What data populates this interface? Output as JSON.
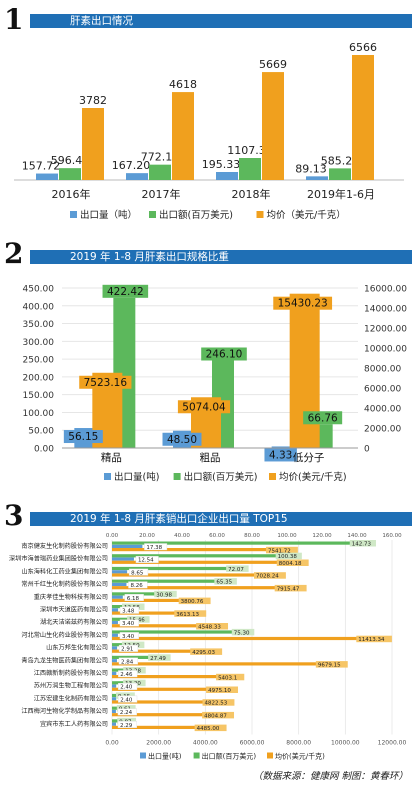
{
  "colors": {
    "blue": "#5b9bd5",
    "green": "#5cb85c",
    "orange": "#f0a01e",
    "header": "#1f6fb5"
  },
  "sections": [
    {
      "num": "1",
      "title": "肝素出口情况"
    },
    {
      "num": "2",
      "title": "2019 年 1-8 月肝素出口规格比重"
    },
    {
      "num": "3",
      "title": "2019 年 1-8 月肝素销出口企业出口量 TOP15"
    }
  ],
  "source": "（数据来源：健康网   制图：黄春环）",
  "chart_data": [
    {
      "type": "bar",
      "categories": [
        "2016年",
        "2017年",
        "2018年",
        "2019年1-6月"
      ],
      "series": [
        {
          "name": "出口量（吨）",
          "color": "blue",
          "values": [
            157.72,
            167.2,
            195.33,
            89.13
          ],
          "labels": [
            "157.72",
            "167.20",
            "195.33",
            "89.13"
          ]
        },
        {
          "name": "出口额(百万美元)",
          "color": "green",
          "values": [
            596.47,
            772.12,
            1107.39,
            585.22
          ],
          "labels": [
            "596.47",
            "772.12",
            "1107.39",
            "585.22"
          ]
        },
        {
          "name": "均价（美元/千克）",
          "color": "orange",
          "values": [
            3782,
            4618,
            5669,
            6566
          ],
          "labels": [
            "3782",
            "4618",
            "5669",
            "6566"
          ]
        }
      ]
    },
    {
      "type": "bar",
      "categories": [
        "精品",
        "粗品",
        "低分子"
      ],
      "yticks_left": [
        "0.00",
        "50.00",
        "100.00",
        "150.00",
        "200.00",
        "250.00",
        "300.00",
        "350.00",
        "400.00",
        "450.00"
      ],
      "yticks_right": [
        "0",
        "2000.00",
        "4000.00",
        "6000.00",
        "8000.00",
        "10000.00",
        "12000.00",
        "14000.00",
        "16000.00"
      ],
      "ylim_left": [
        0,
        450
      ],
      "ylim_right": [
        0,
        16000
      ],
      "series": [
        {
          "name": "出口量(吨)",
          "color": "blue",
          "axis": "left",
          "values": [
            56.15,
            48.5,
            4.33
          ],
          "labels": [
            "56.15",
            "48.50",
            "4.33"
          ]
        },
        {
          "name": "出口额(百万美元)",
          "color": "green",
          "axis": "left",
          "values": [
            422.42,
            246.1,
            66.76
          ],
          "labels": [
            "422.42",
            "246.10",
            "66.76"
          ]
        },
        {
          "name": "均价(美元/千克)",
          "color": "orange",
          "axis": "right",
          "values": [
            7523.16,
            5074.04,
            15430.23
          ],
          "labels": [
            "7523.16",
            "5074.04",
            "15430.23"
          ]
        }
      ]
    },
    {
      "type": "bar",
      "orientation": "horizontal",
      "categories": [
        "南京健友生化制药股份有限公司",
        "深圳市海普瑞药业集团股份有限公司",
        "山东海科化工药业集团有限公司",
        "常州千红生化制药股份有限公司",
        "重庆孝佳生物科技有限公司",
        "深圳市天道医药有限公司",
        "湖北天洁诺兹药有限公司",
        "河北常山生化药业股份有限公司",
        "山东万邦生化有限公司",
        "青岛九龙生物医药集团有限公司",
        "江西赣新制药股份有限公司",
        "苏州万润生物工程有限公司",
        "江苏宏建生化制药有限公司",
        "江西梅河生物化学制品有限公司",
        "宜宾市东工人药有限公司"
      ],
      "xticks_top": [
        "0.00",
        "20.00",
        "40.00",
        "60.00",
        "80.00",
        "100.00",
        "120.00",
        "140.00",
        "160.00"
      ],
      "xticks_bottom": [
        "0.00",
        "2000.00",
        "4000.00",
        "6000.00",
        "8000.00",
        "10000.00",
        "12000.00"
      ],
      "xlim_top": [
        0,
        160
      ],
      "xlim_bottom": [
        0,
        12000
      ],
      "series": [
        {
          "name": "出口量(吨)",
          "color": "blue",
          "axis": "top",
          "values": [
            17.38,
            12.54,
            8.65,
            8.26,
            6.18,
            3.48,
            3.4,
            3.4,
            2.91,
            2.84,
            2.46,
            2.4,
            2.4,
            2.24,
            2.29
          ],
          "labels": [
            "17.38",
            "12.54",
            "8.65",
            "8.26",
            "6.18",
            "3.48",
            "3.40",
            "3.40",
            "2.91",
            "2.84",
            "2.46",
            "2.40",
            "2.40",
            "2.24",
            "2.29"
          ]
        },
        {
          "name": "出口额(百万美元)",
          "color": "green",
          "axis": "top",
          "values": [
            142.73,
            100.38,
            72.07,
            65.35,
            30.98,
            12.58,
            15.46,
            75.3,
            12.5,
            27.49,
            13.28,
            13.2,
            9.15,
            9.61,
            9.87
          ],
          "labels": [
            "142.73",
            "100.38",
            "72.07",
            "65.35",
            "30.98",
            "12.58",
            "15.46",
            "75.30",
            "12.50",
            "27.49",
            "13.28",
            "13.20",
            "9.15",
            "9.61",
            "9.87"
          ]
        },
        {
          "name": "均价(美元/千克)",
          "color": "orange",
          "axis": "bottom",
          "values": [
            7541.72,
            8004.18,
            7028.24,
            7915.47,
            3800.76,
            3613.13,
            4548.33,
            11413.34,
            4295.03,
            9679.15,
            5403.1,
            4975.1,
            4822.53,
            4804.87,
            4485.0
          ],
          "labels": [
            "7541.72",
            "8004.18",
            "7028.24",
            "7915.47",
            "3800.76",
            "3613.13",
            "4548.33",
            "11413.34",
            "4295.03",
            "9679.15",
            "5403.1",
            "4975.10",
            "4822.53",
            "4804.87",
            "4485.00"
          ]
        }
      ]
    }
  ]
}
